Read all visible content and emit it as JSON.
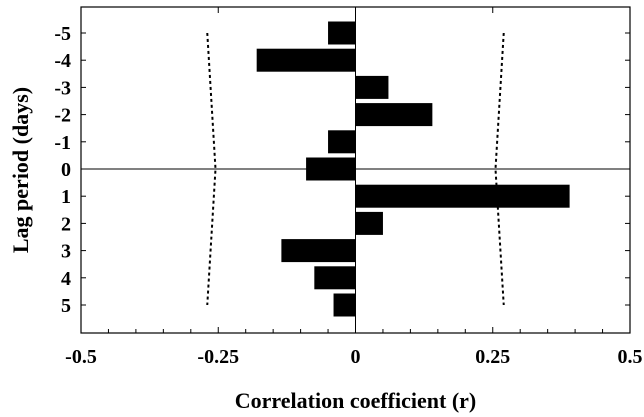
{
  "chart_data": {
    "type": "bar",
    "orientation": "horizontal",
    "xlabel": "Correlation coefficient (r)",
    "ylabel": "Lag period (days)",
    "xlim": [
      -0.5,
      0.5
    ],
    "x_ticks": [
      "-0.5",
      "-0.25",
      "0",
      "0.25",
      "0.5"
    ],
    "categories": [
      "-5",
      "-4",
      "-3",
      "-2",
      "-1",
      "0",
      "1",
      "2",
      "3",
      "4",
      "5"
    ],
    "values": [
      -0.05,
      -0.18,
      0.06,
      0.14,
      -0.05,
      -0.09,
      0.39,
      0.05,
      -0.135,
      -0.075,
      -0.04
    ],
    "bar_color": "#000000",
    "reference_lines": [
      {
        "style": "dotted",
        "y_from": "-5",
        "y_to": "5",
        "x_from": -0.27,
        "x_mid": -0.255,
        "x_to": -0.27
      },
      {
        "style": "dotted",
        "y_from": "-5",
        "y_to": "5",
        "x_from": 0.27,
        "x_mid": 0.255,
        "x_to": 0.27
      }
    ],
    "zero_line_at_category": "0",
    "grid": false,
    "legend": "none"
  }
}
